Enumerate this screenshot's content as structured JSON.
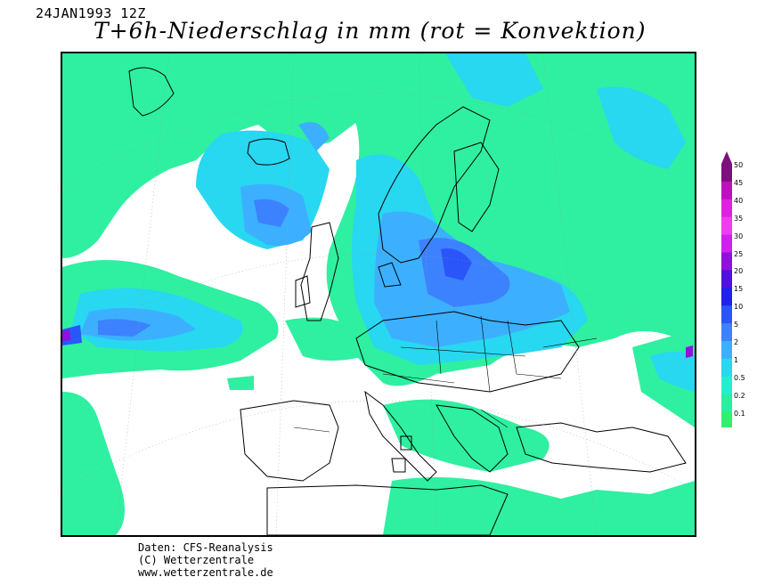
{
  "header": {
    "date": "24JAN1993 12Z",
    "title": "T+6h-Niederschlag in mm (rot = Konvektion)"
  },
  "legend": {
    "levels": [
      "50",
      "45",
      "40",
      "35",
      "30",
      "25",
      "20",
      "15",
      "10",
      "5",
      "2",
      "1",
      "0.5",
      "0.2",
      "0.1"
    ],
    "colors": [
      "#7e0f7e",
      "#bf10bf",
      "#e020e0",
      "#f03cf0",
      "#d020f0",
      "#9010e0",
      "#5010e0",
      "#2020f0",
      "#2a55f8",
      "#3c82ff",
      "#3cb0ff",
      "#28d7f0",
      "#20f0d0",
      "#28f0a0",
      "#30f070"
    ]
  },
  "footer": {
    "line1": "Daten: CFS-Reanalysis",
    "line2": "(C) Wetterzentrale",
    "line3": "www.wetterzentrale.de"
  }
}
